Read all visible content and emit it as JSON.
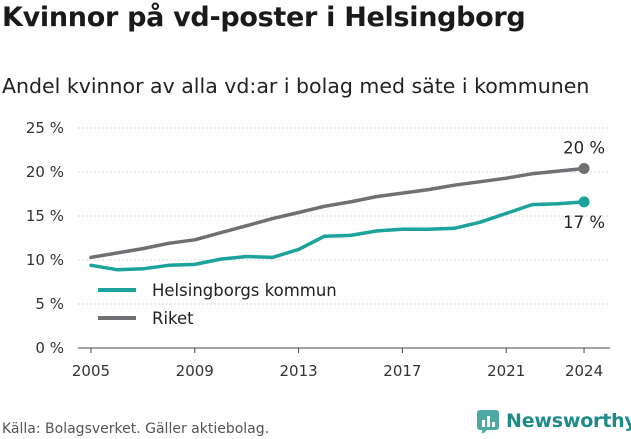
{
  "title": "Kvinnor på vd-poster i Helsingborg",
  "subtitle": "Andel kvinnor av alla vd:ar i bolag med säte i kommunen",
  "source": "Källa: Bolagsverket. Gäller aktiebolag.",
  "brand": "Newsworthy",
  "colors": {
    "local": "#1ba39c",
    "national": "#706f74",
    "grid": "#d9d9d9"
  },
  "chart_data": {
    "type": "line",
    "x": [
      2005,
      2006,
      2007,
      2008,
      2009,
      2010,
      2011,
      2012,
      2013,
      2014,
      2015,
      2016,
      2017,
      2018,
      2019,
      2020,
      2021,
      2022,
      2023,
      2024
    ],
    "x_ticks": [
      2005,
      2009,
      2013,
      2017,
      2021,
      2024
    ],
    "y_ticks": [
      0,
      5,
      10,
      15,
      20,
      25
    ],
    "y_tick_labels": [
      "0 %",
      "5 %",
      "10 %",
      "15 %",
      "20 %",
      "25 %"
    ],
    "ylim": [
      0,
      25
    ],
    "grid": true,
    "legend_placement": "bottom-left",
    "series": [
      {
        "name": "Helsingborgs kommun",
        "color": "#1ba39c",
        "values": [
          9.4,
          8.9,
          9.0,
          9.4,
          9.5,
          10.1,
          10.4,
          10.3,
          11.2,
          12.7,
          12.8,
          13.3,
          13.5,
          13.5,
          13.6,
          14.3,
          15.3,
          16.3,
          16.4,
          16.6
        ],
        "end_label": "17 %"
      },
      {
        "name": "Riket",
        "color": "#706f74",
        "values": [
          10.3,
          10.8,
          11.3,
          11.9,
          12.3,
          13.1,
          13.9,
          14.7,
          15.4,
          16.1,
          16.6,
          17.2,
          17.6,
          18.0,
          18.5,
          18.9,
          19.3,
          19.8,
          20.1,
          20.4
        ],
        "end_label": "20 %"
      }
    ]
  }
}
